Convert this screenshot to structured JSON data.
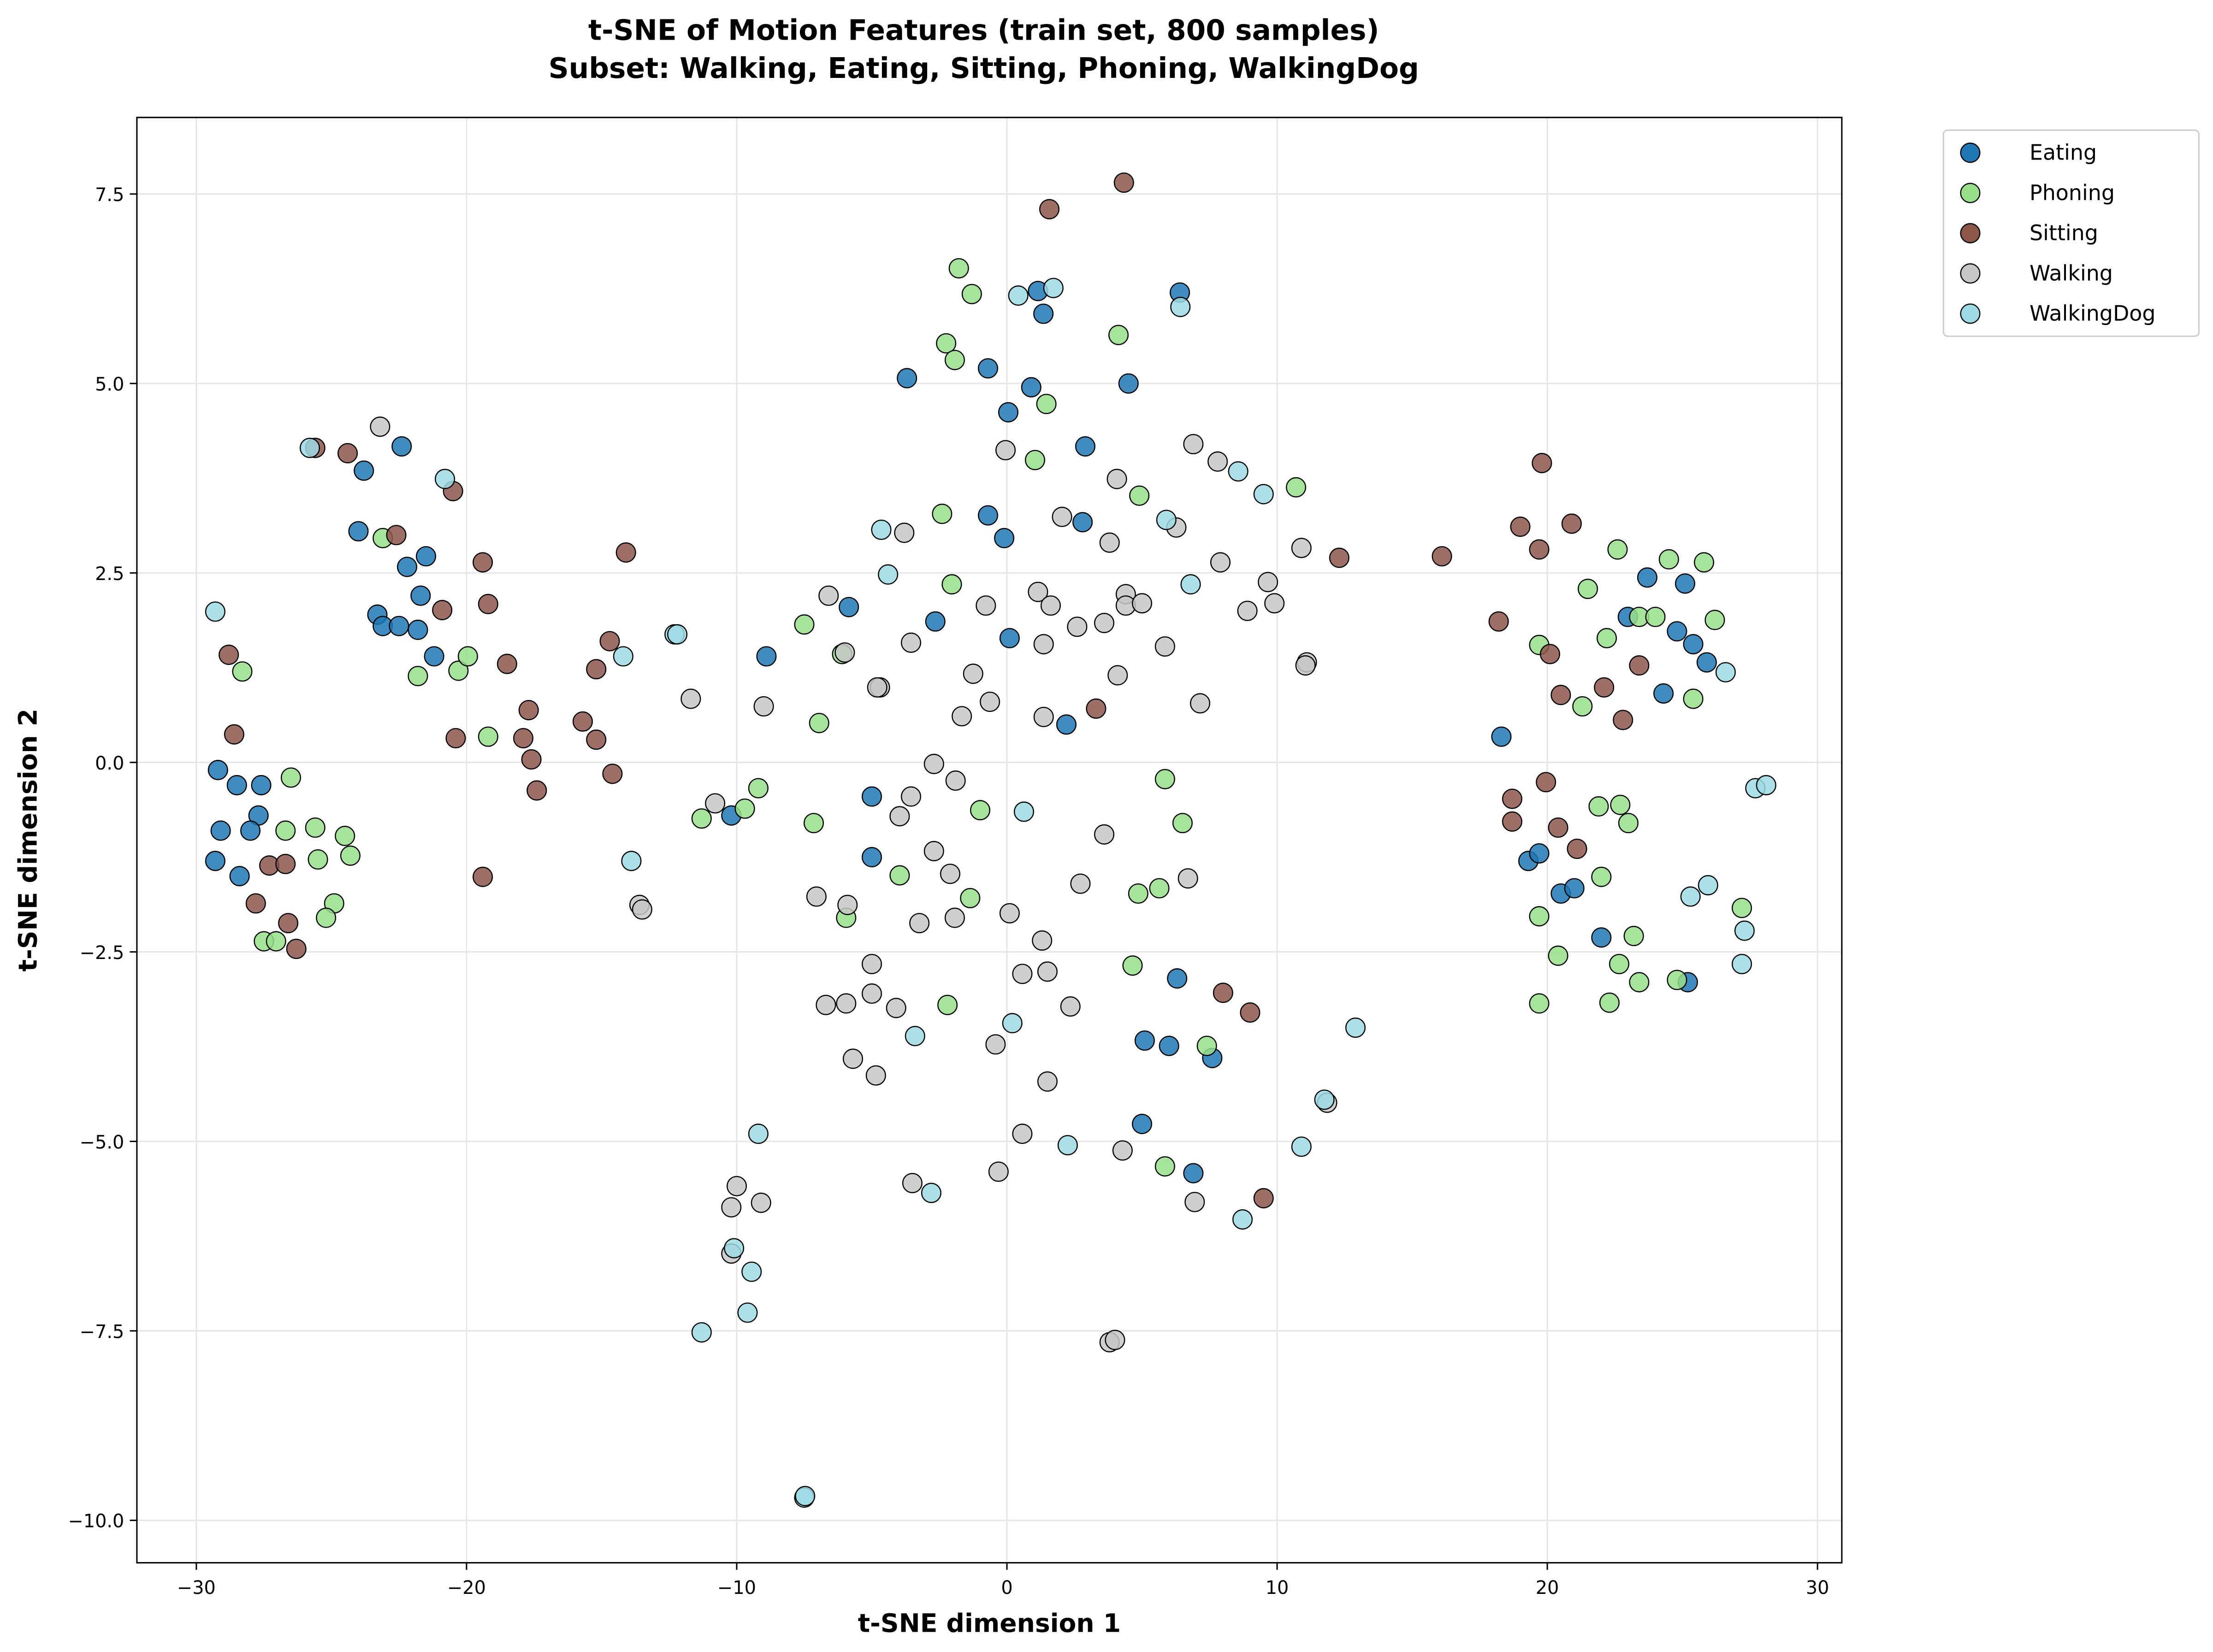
{
  "chart_data": {
    "type": "scatter",
    "title": "t-SNE of Motion Features (train set, 800 samples)",
    "subtitle": "Subset: Walking, Eating, Sitting, Phoning, WalkingDog",
    "xlabel": "t-SNE dimension 1",
    "ylabel": "t-SNE dimension 2",
    "xlim": [
      -32.2,
      30.9
    ],
    "ylim": [
      -10.56,
      8.51
    ],
    "xticks": [
      -30,
      -20,
      -10,
      0,
      10,
      20,
      30
    ],
    "xtick_labels": [
      "−30",
      "−20",
      "−10",
      "0",
      "10",
      "20",
      "30"
    ],
    "yticks": [
      -10,
      -7.5,
      -5,
      -2.5,
      0,
      2.5,
      5,
      7.5
    ],
    "ytick_labels": [
      "−10.0",
      "−7.5",
      "−5.0",
      "−2.5",
      "0.0",
      "2.5",
      "5.0",
      "7.5"
    ],
    "grid": true,
    "legend_placement": "outside-top-right",
    "series": [
      {
        "name": "Eating",
        "color": "#1f77b4",
        "points": [
          [
            -29.2,
            -0.1
          ],
          [
            -29.1,
            -0.9
          ],
          [
            -28.5,
            -0.3
          ],
          [
            -27.6,
            -0.3
          ],
          [
            -27.7,
            -0.7
          ],
          [
            -28.0,
            -0.9
          ],
          [
            -29.3,
            -1.3
          ],
          [
            -28.4,
            -1.5
          ],
          [
            -24.0,
            3.05
          ],
          [
            -23.8,
            3.85
          ],
          [
            -22.4,
            4.17
          ],
          [
            -23.3,
            1.95
          ],
          [
            -23.1,
            1.8
          ],
          [
            -22.5,
            1.8
          ],
          [
            -21.8,
            1.75
          ],
          [
            -22.2,
            2.58
          ],
          [
            -21.5,
            2.72
          ],
          [
            -21.7,
            2.2
          ],
          [
            -21.2,
            1.4
          ],
          [
            -8.9,
            1.4
          ],
          [
            -10.2,
            -0.7
          ],
          [
            -5.85,
            2.05
          ],
          [
            -5.0,
            -0.45
          ],
          [
            -5.0,
            -1.25
          ],
          [
            -3.7,
            5.07
          ],
          [
            -2.65,
            1.86
          ],
          [
            -0.7,
            5.2
          ],
          [
            -0.7,
            3.26
          ],
          [
            -0.1,
            2.96
          ],
          [
            0.05,
            4.62
          ],
          [
            0.9,
            4.95
          ],
          [
            1.15,
            6.22
          ],
          [
            1.35,
            5.92
          ],
          [
            0.1,
            1.64
          ],
          [
            2.2,
            0.5
          ],
          [
            2.9,
            4.17
          ],
          [
            2.8,
            3.17
          ],
          [
            4.5,
            5.0
          ],
          [
            6.4,
            6.2
          ],
          [
            6.3,
            -2.85
          ],
          [
            5.1,
            -3.67
          ],
          [
            6.0,
            -3.74
          ],
          [
            7.6,
            -3.9
          ],
          [
            5.0,
            -4.77
          ],
          [
            6.9,
            -5.42
          ],
          [
            18.3,
            0.34
          ],
          [
            19.3,
            -1.3
          ],
          [
            19.7,
            -1.2
          ],
          [
            20.5,
            -1.73
          ],
          [
            21.0,
            -1.66
          ],
          [
            22.0,
            -2.31
          ],
          [
            25.2,
            -2.9
          ],
          [
            23.7,
            2.44
          ],
          [
            25.1,
            2.36
          ],
          [
            22.98,
            1.92
          ],
          [
            24.8,
            1.73
          ],
          [
            25.4,
            1.56
          ],
          [
            25.9,
            1.32
          ],
          [
            24.3,
            0.91
          ]
        ]
      },
      {
        "name": "Phoning",
        "color": "#98df8a",
        "points": [
          [
            -28.3,
            1.2
          ],
          [
            -26.5,
            -0.2
          ],
          [
            -26.7,
            -0.9
          ],
          [
            -25.6,
            -0.86
          ],
          [
            -24.5,
            -0.97
          ],
          [
            -24.3,
            -1.23
          ],
          [
            -25.5,
            -1.28
          ],
          [
            -24.9,
            -1.86
          ],
          [
            -25.2,
            -2.05
          ],
          [
            -27.5,
            -2.36
          ],
          [
            -27.05,
            -2.36
          ],
          [
            -23.1,
            2.96
          ],
          [
            -21.8,
            1.14
          ],
          [
            -20.3,
            1.21
          ],
          [
            -19.95,
            1.4
          ],
          [
            -19.2,
            0.34
          ],
          [
            -11.3,
            -0.74
          ],
          [
            -9.7,
            -0.61
          ],
          [
            -9.2,
            -0.34
          ],
          [
            -7.5,
            1.82
          ],
          [
            -6.95,
            0.52
          ],
          [
            -7.15,
            -0.8
          ],
          [
            -6.1,
            1.43
          ],
          [
            -5.95,
            -2.05
          ],
          [
            -3.97,
            -1.49
          ],
          [
            -2.4,
            3.28
          ],
          [
            -2.04,
            2.35
          ],
          [
            -2.25,
            5.53
          ],
          [
            -1.93,
            5.31
          ],
          [
            -1.78,
            6.52
          ],
          [
            -1.3,
            6.18
          ],
          [
            -2.2,
            -3.2
          ],
          [
            -1.36,
            -1.79
          ],
          [
            -0.99,
            -0.63
          ],
          [
            1.46,
            4.73
          ],
          [
            1.04,
            3.99
          ],
          [
            4.13,
            5.64
          ],
          [
            4.9,
            3.52
          ],
          [
            4.65,
            -2.68
          ],
          [
            4.86,
            -1.73
          ],
          [
            5.64,
            -1.66
          ],
          [
            5.85,
            -0.22
          ],
          [
            6.5,
            -0.8
          ],
          [
            5.85,
            -5.33
          ],
          [
            7.4,
            -3.74
          ],
          [
            10.7,
            3.63
          ],
          [
            19.7,
            1.55
          ],
          [
            19.7,
            -2.03
          ],
          [
            20.4,
            -2.55
          ],
          [
            19.7,
            -3.18
          ],
          [
            21.3,
            0.74
          ],
          [
            21.5,
            2.29
          ],
          [
            22.6,
            2.81
          ],
          [
            22.2,
            1.64
          ],
          [
            23.4,
            1.92
          ],
          [
            24.0,
            1.92
          ],
          [
            24.5,
            2.68
          ],
          [
            25.8,
            2.64
          ],
          [
            26.2,
            1.88
          ],
          [
            25.4,
            0.84
          ],
          [
            21.9,
            -0.58
          ],
          [
            22.7,
            -0.56
          ],
          [
            23.0,
            -0.8
          ],
          [
            22.0,
            -1.51
          ],
          [
            23.2,
            -2.29
          ],
          [
            22.66,
            -2.66
          ],
          [
            22.3,
            -3.17
          ],
          [
            23.4,
            -2.9
          ],
          [
            24.8,
            -2.87
          ],
          [
            27.2,
            -1.92
          ]
        ]
      },
      {
        "name": "Sitting",
        "color": "#8c564b",
        "points": [
          [
            -28.8,
            1.42
          ],
          [
            -28.6,
            0.37
          ],
          [
            -27.3,
            -1.36
          ],
          [
            -26.7,
            -1.34
          ],
          [
            -27.8,
            -1.86
          ],
          [
            -26.6,
            -2.12
          ],
          [
            -26.3,
            -2.46
          ],
          [
            -25.6,
            4.15
          ],
          [
            -24.4,
            4.08
          ],
          [
            -22.6,
            3.0
          ],
          [
            -20.5,
            3.58
          ],
          [
            -20.9,
            2.01
          ],
          [
            -19.4,
            2.64
          ],
          [
            -19.2,
            2.09
          ],
          [
            -18.5,
            1.3
          ],
          [
            -19.4,
            -1.51
          ],
          [
            -20.4,
            0.32
          ],
          [
            -17.7,
            0.69
          ],
          [
            -17.9,
            0.32
          ],
          [
            -17.6,
            0.04
          ],
          [
            -17.4,
            -0.37
          ],
          [
            -15.7,
            0.54
          ],
          [
            -15.2,
            0.3
          ],
          [
            -15.2,
            1.23
          ],
          [
            -14.7,
            1.6
          ],
          [
            -14.6,
            -0.15
          ],
          [
            -14.1,
            2.77
          ],
          [
            1.57,
            7.3
          ],
          [
            4.33,
            7.65
          ],
          [
            3.3,
            0.71
          ],
          [
            8.0,
            -3.04
          ],
          [
            9.0,
            -3.3
          ],
          [
            9.5,
            -5.75
          ],
          [
            12.3,
            2.7
          ],
          [
            16.1,
            2.72
          ],
          [
            19.8,
            3.95
          ],
          [
            19.0,
            3.11
          ],
          [
            19.7,
            2.81
          ],
          [
            20.9,
            3.15
          ],
          [
            18.2,
            1.86
          ],
          [
            20.1,
            1.43
          ],
          [
            20.5,
            0.89
          ],
          [
            22.1,
            0.99
          ],
          [
            23.4,
            1.28
          ],
          [
            22.8,
            0.56
          ],
          [
            18.7,
            -0.48
          ],
          [
            18.7,
            -0.78
          ],
          [
            19.95,
            -0.26
          ],
          [
            20.4,
            -0.86
          ],
          [
            21.1,
            -1.14
          ]
        ]
      },
      {
        "name": "Walking",
        "color": "#c7c7c7",
        "points": [
          [
            -23.2,
            4.43
          ],
          [
            -11.7,
            0.84
          ],
          [
            -10.8,
            -0.54
          ],
          [
            -9.0,
            0.74
          ],
          [
            -13.6,
            -1.88
          ],
          [
            -13.5,
            -1.94
          ],
          [
            -7.05,
            -1.77
          ],
          [
            -5.9,
            -1.88
          ],
          [
            -6.7,
            -3.2
          ],
          [
            -5.95,
            -3.18
          ],
          [
            -5.7,
            -3.91
          ],
          [
            -5.0,
            -2.66
          ],
          [
            -5.0,
            -3.05
          ],
          [
            -4.85,
            -4.13
          ],
          [
            -4.1,
            -3.24
          ],
          [
            -3.97,
            -0.71
          ],
          [
            -3.55,
            -0.45
          ],
          [
            -3.24,
            -2.12
          ],
          [
            -2.7,
            -0.02
          ],
          [
            -2.7,
            -1.17
          ],
          [
            -2.1,
            -1.47
          ],
          [
            -1.9,
            -0.24
          ],
          [
            -1.93,
            -2.05
          ],
          [
            -1.67,
            0.61
          ],
          [
            -1.25,
            1.17
          ],
          [
            -0.63,
            0.8
          ],
          [
            -0.78,
            2.07
          ],
          [
            -0.05,
            4.12
          ],
          [
            0.1,
            -1.99
          ],
          [
            -0.42,
            -3.72
          ],
          [
            -0.31,
            -5.4
          ],
          [
            0.57,
            -4.9
          ],
          [
            0.57,
            -2.79
          ],
          [
            1.3,
            -2.35
          ],
          [
            1.5,
            -2.76
          ],
          [
            1.5,
            -4.21
          ],
          [
            1.15,
            2.25
          ],
          [
            1.62,
            2.07
          ],
          [
            1.36,
            1.56
          ],
          [
            1.36,
            0.6
          ],
          [
            2.04,
            3.24
          ],
          [
            2.6,
            1.79
          ],
          [
            2.35,
            -3.22
          ],
          [
            2.72,
            -1.6
          ],
          [
            3.6,
            1.84
          ],
          [
            3.8,
            2.9
          ],
          [
            4.07,
            3.74
          ],
          [
            4.4,
            2.22
          ],
          [
            4.4,
            2.07
          ],
          [
            5.0,
            2.1
          ],
          [
            4.1,
            1.15
          ],
          [
            3.6,
            -0.95
          ],
          [
            4.28,
            -5.12
          ],
          [
            3.8,
            -7.65
          ],
          [
            4.0,
            -7.62
          ],
          [
            6.27,
            3.1
          ],
          [
            5.85,
            1.53
          ],
          [
            6.9,
            4.2
          ],
          [
            7.8,
            3.97
          ],
          [
            7.9,
            2.64
          ],
          [
            7.15,
            0.78
          ],
          [
            6.7,
            -1.53
          ],
          [
            6.95,
            -5.8
          ],
          [
            9.66,
            2.38
          ],
          [
            8.9,
            2.0
          ],
          [
            9.9,
            2.1
          ],
          [
            10.9,
            2.83
          ],
          [
            11.1,
            1.32
          ],
          [
            11.05,
            1.28
          ],
          [
            -3.8,
            3.03
          ],
          [
            -6.6,
            2.2
          ],
          [
            -6.0,
            1.45
          ],
          [
            -4.7,
            0.99
          ],
          [
            -4.8,
            0.99
          ],
          [
            -3.55,
            1.58
          ],
          [
            -10.0,
            -5.59
          ],
          [
            -10.2,
            -5.87
          ],
          [
            -9.1,
            -5.81
          ],
          [
            -10.2,
            -6.48
          ],
          [
            -3.5,
            -5.55
          ],
          [
            11.85,
            -4.49
          ]
        ]
      },
      {
        "name": "WalkingDog",
        "color": "#9edae5",
        "points": [
          [
            -29.3,
            1.99
          ],
          [
            -25.8,
            4.15
          ],
          [
            -20.8,
            3.74
          ],
          [
            -14.2,
            1.4
          ],
          [
            -13.9,
            -1.3
          ],
          [
            -12.3,
            1.69
          ],
          [
            -12.2,
            1.69
          ],
          [
            -4.65,
            3.07
          ],
          [
            -4.4,
            2.48
          ],
          [
            -3.4,
            -3.61
          ],
          [
            -2.8,
            -5.68
          ],
          [
            -9.2,
            -4.9
          ],
          [
            -10.1,
            -6.41
          ],
          [
            -9.45,
            -6.72
          ],
          [
            -9.6,
            -7.26
          ],
          [
            -11.3,
            -7.52
          ],
          [
            -7.5,
            -9.7
          ],
          [
            -7.47,
            -9.68
          ],
          [
            0.42,
            6.16
          ],
          [
            1.72,
            6.26
          ],
          [
            6.42,
            6.01
          ],
          [
            0.63,
            -0.65
          ],
          [
            0.2,
            -3.44
          ],
          [
            2.25,
            -5.05
          ],
          [
            5.9,
            3.2
          ],
          [
            6.8,
            2.35
          ],
          [
            8.56,
            3.84
          ],
          [
            9.5,
            3.54
          ],
          [
            8.72,
            -6.03
          ],
          [
            10.9,
            -5.07
          ],
          [
            11.75,
            -4.45
          ],
          [
            12.9,
            -3.5
          ],
          [
            26.6,
            1.19
          ],
          [
            27.7,
            -0.34
          ],
          [
            28.1,
            -0.3
          ],
          [
            25.3,
            -1.77
          ],
          [
            25.95,
            -1.62
          ],
          [
            27.3,
            -2.22
          ],
          [
            27.2,
            -2.66
          ]
        ]
      }
    ]
  }
}
